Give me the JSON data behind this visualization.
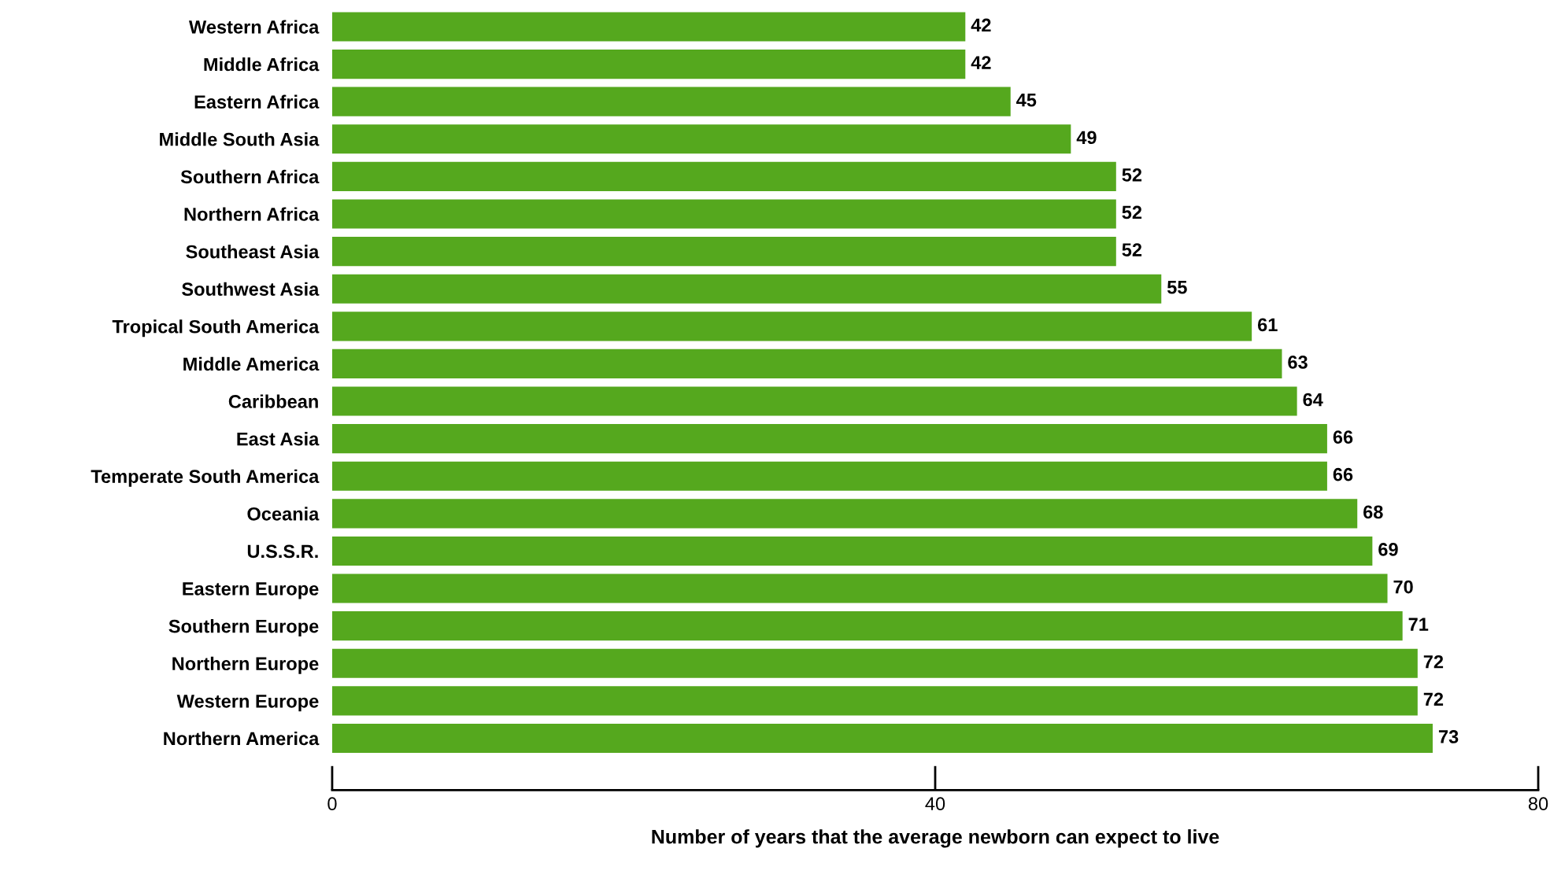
{
  "chart_data": {
    "type": "bar",
    "orientation": "horizontal",
    "xlabel": "Number of years that the average newborn can expect to live",
    "categories": [
      "Western Africa",
      "Middle Africa",
      "Eastern Africa",
      "Middle South Asia",
      "Southern Africa",
      "Northern Africa",
      "Southeast Asia",
      "Southwest Asia",
      "Tropical South America",
      "Middle America",
      "Caribbean",
      "East Asia",
      "Temperate South America",
      "Oceania",
      "U.S.S.R.",
      "Eastern Europe",
      "Southern Europe",
      "Northern Europe",
      "Western Europe",
      "Northern America"
    ],
    "values": [
      42,
      42,
      45,
      49,
      52,
      52,
      52,
      55,
      61,
      63,
      64,
      66,
      66,
      68,
      69,
      70,
      71,
      72,
      72,
      73
    ],
    "color": "#55a81e",
    "xlim": [
      0,
      80
    ],
    "xticks": [
      0,
      40,
      80
    ],
    "data_labels": true,
    "grid": false
  }
}
